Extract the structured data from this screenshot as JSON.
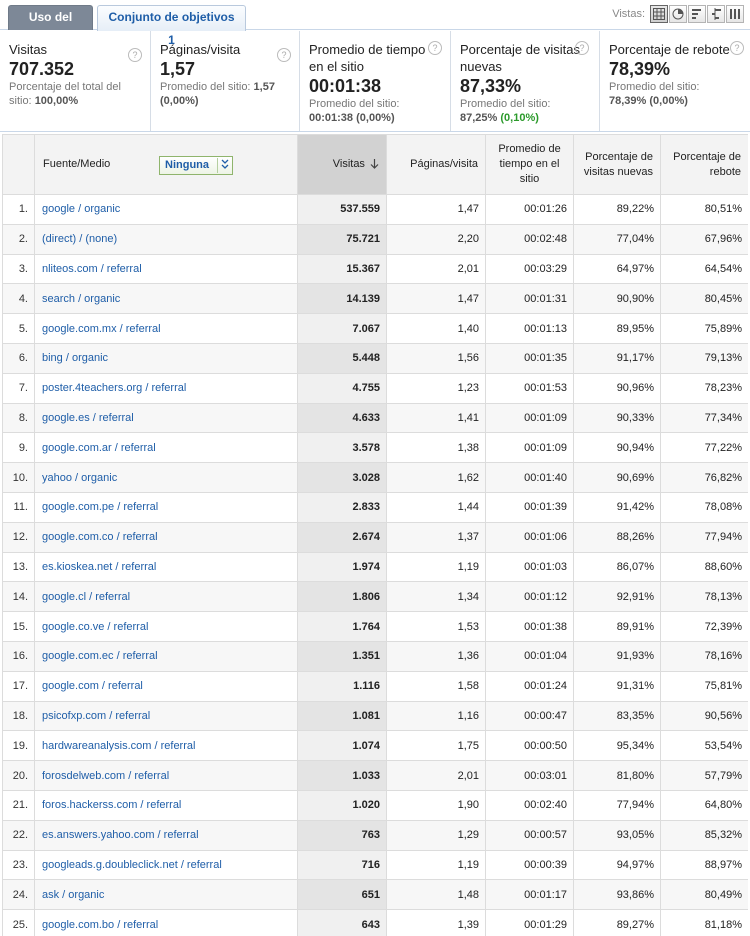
{
  "tabs": [
    {
      "label": "Uso del sitio",
      "active": true
    },
    {
      "label": "Conjunto de objetivos 1",
      "active": false
    }
  ],
  "views": {
    "label": "Vistas:",
    "icons": [
      "table-view-icon",
      "pie-view-icon",
      "performance-view-icon",
      "comparison-view-icon",
      "pivot-view-icon"
    ]
  },
  "scorecards": [
    {
      "title": "Visitas",
      "value": "707.352",
      "sub_prefix": "Porcentaje del total del sitio: ",
      "sub_value": "100,00%",
      "sub_extra": ""
    },
    {
      "title": "Páginas/visita",
      "value": "1,57",
      "sub_prefix": "Promedio del sitio: ",
      "sub_value": "1,57",
      "sub_extra": "(0,00%)"
    },
    {
      "title": "Promedio de tiempo en el sitio",
      "value": "00:01:38",
      "sub_prefix": "Promedio del sitio: ",
      "sub_value": "00:01:38",
      "sub_extra": "(0,00%)"
    },
    {
      "title": "Porcentaje de visitas nuevas",
      "value": "87,33%",
      "sub_prefix": "Promedio del sitio: ",
      "sub_value": "87,25%",
      "sub_extra": "(0,10%)"
    },
    {
      "title": "Porcentaje de rebote",
      "value": "78,39%",
      "sub_prefix": "Promedio del sitio: ",
      "sub_value": "78,39%",
      "sub_extra": "(0,00%)"
    }
  ],
  "table": {
    "headers": {
      "dimension": "Fuente/Medio",
      "secondary": "Ninguna",
      "visits": "Visitas",
      "pages": "Páginas/visita",
      "time": "Promedio de tiempo en el sitio",
      "new": "Porcentaje de visitas nuevas",
      "bounce": "Porcentaje de rebote"
    },
    "rows": [
      [
        "1.",
        "google / organic",
        "537.559",
        "1,47",
        "00:01:26",
        "89,22%",
        "80,51%"
      ],
      [
        "2.",
        "(direct) / (none)",
        "75.721",
        "2,20",
        "00:02:48",
        "77,04%",
        "67,96%"
      ],
      [
        "3.",
        "nliteos.com / referral",
        "15.367",
        "2,01",
        "00:03:29",
        "64,97%",
        "64,54%"
      ],
      [
        "4.",
        "search / organic",
        "14.139",
        "1,47",
        "00:01:31",
        "90,90%",
        "80,45%"
      ],
      [
        "5.",
        "google.com.mx / referral",
        "7.067",
        "1,40",
        "00:01:13",
        "89,95%",
        "75,89%"
      ],
      [
        "6.",
        "bing / organic",
        "5.448",
        "1,56",
        "00:01:35",
        "91,17%",
        "79,13%"
      ],
      [
        "7.",
        "poster.4teachers.org / referral",
        "4.755",
        "1,23",
        "00:01:53",
        "90,96%",
        "78,23%"
      ],
      [
        "8.",
        "google.es / referral",
        "4.633",
        "1,41",
        "00:01:09",
        "90,33%",
        "77,34%"
      ],
      [
        "9.",
        "google.com.ar / referral",
        "3.578",
        "1,38",
        "00:01:09",
        "90,94%",
        "77,22%"
      ],
      [
        "10.",
        "yahoo / organic",
        "3.028",
        "1,62",
        "00:01:40",
        "90,69%",
        "76,82%"
      ],
      [
        "11.",
        "google.com.pe / referral",
        "2.833",
        "1,44",
        "00:01:39",
        "91,42%",
        "78,08%"
      ],
      [
        "12.",
        "google.com.co / referral",
        "2.674",
        "1,37",
        "00:01:06",
        "88,26%",
        "77,94%"
      ],
      [
        "13.",
        "es.kioskea.net / referral",
        "1.974",
        "1,19",
        "00:01:03",
        "86,07%",
        "88,60%"
      ],
      [
        "14.",
        "google.cl / referral",
        "1.806",
        "1,34",
        "00:01:12",
        "92,91%",
        "78,13%"
      ],
      [
        "15.",
        "google.co.ve / referral",
        "1.764",
        "1,53",
        "00:01:38",
        "89,91%",
        "72,39%"
      ],
      [
        "16.",
        "google.com.ec / referral",
        "1.351",
        "1,36",
        "00:01:04",
        "91,93%",
        "78,16%"
      ],
      [
        "17.",
        "google.com / referral",
        "1.116",
        "1,58",
        "00:01:24",
        "91,31%",
        "75,81%"
      ],
      [
        "18.",
        "psicofxp.com / referral",
        "1.081",
        "1,16",
        "00:00:47",
        "83,35%",
        "90,56%"
      ],
      [
        "19.",
        "hardwareanalysis.com / referral",
        "1.074",
        "1,75",
        "00:00:50",
        "95,34%",
        "53,54%"
      ],
      [
        "20.",
        "forosdelweb.com / referral",
        "1.033",
        "2,01",
        "00:03:01",
        "81,80%",
        "57,79%"
      ],
      [
        "21.",
        "foros.hackerss.com / referral",
        "1.020",
        "1,90",
        "00:02:40",
        "77,94%",
        "64,80%"
      ],
      [
        "22.",
        "es.answers.yahoo.com / referral",
        "763",
        "1,29",
        "00:00:57",
        "93,05%",
        "85,32%"
      ],
      [
        "23.",
        "googleads.g.doubleclick.net / referral",
        "716",
        "1,19",
        "00:00:39",
        "94,97%",
        "88,97%"
      ],
      [
        "24.",
        "ask / organic",
        "651",
        "1,48",
        "00:01:17",
        "93,86%",
        "80,49%"
      ],
      [
        "25.",
        "google.com.bo / referral",
        "643",
        "1,39",
        "00:01:29",
        "89,27%",
        "81,18%"
      ]
    ]
  },
  "colors": {
    "link": "#1f5ea8",
    "positive": "#2b9a2b",
    "active_tab": "#7d8897"
  }
}
